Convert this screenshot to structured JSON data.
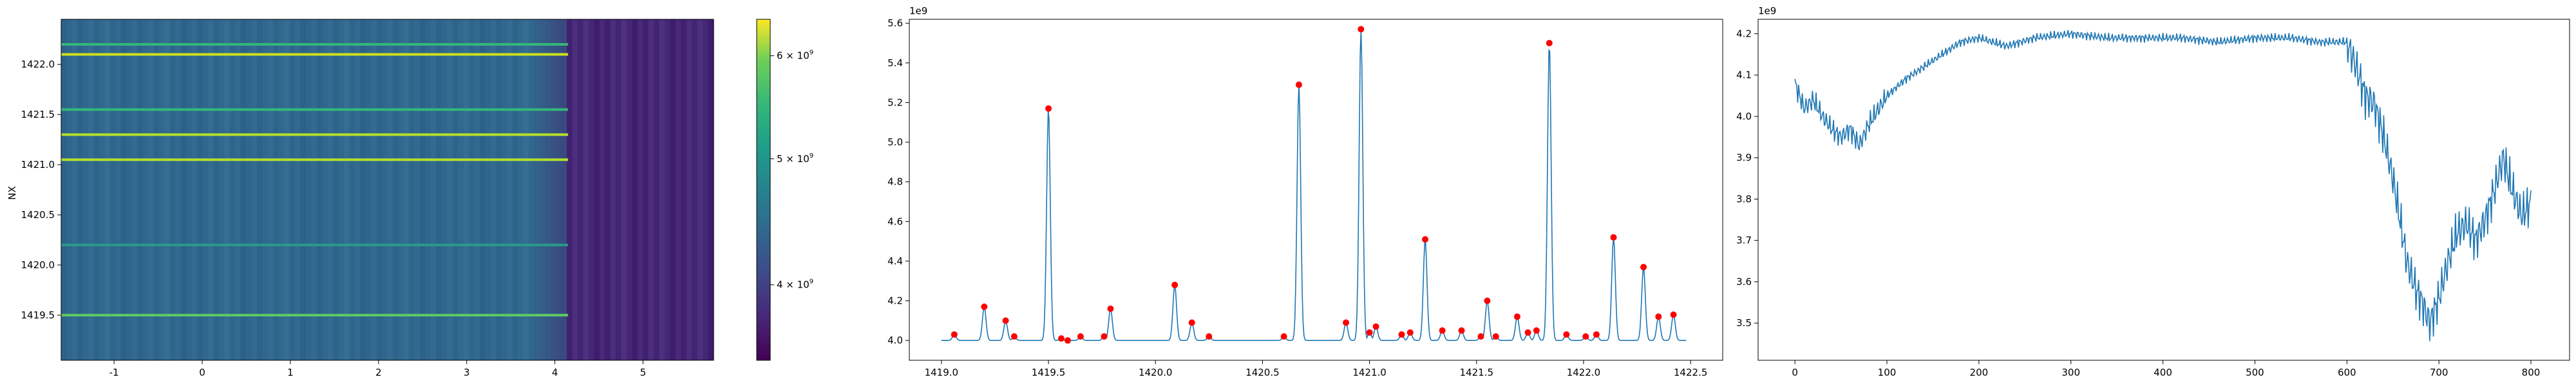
{
  "chart_data": [
    {
      "type": "heatmap",
      "ylabel": "NX",
      "xlim": [
        -1.6,
        5.8
      ],
      "ylim": [
        1419.05,
        1422.45
      ],
      "x_ticks": [
        "-1",
        "0",
        "1",
        "2",
        "3",
        "4",
        "5"
      ],
      "x_tick_values": [
        -1,
        0,
        1,
        2,
        3,
        4,
        5
      ],
      "y_ticks": [
        "1419.5",
        "1420.0",
        "1420.5",
        "1421.0",
        "1421.5",
        "1422.0"
      ],
      "y_tick_values": [
        1419.5,
        1420.0,
        1420.5,
        1421.0,
        1421.5,
        1422.0
      ],
      "colormap": "viridis",
      "colorbar": {
        "scale": "log",
        "range": [
          3500000000,
          6400000000
        ],
        "ticks": [
          {
            "value": 4000000000,
            "base": "4",
            "mult": "× 10",
            "exp": "9"
          },
          {
            "value": 5000000000,
            "base": "5",
            "mult": "× 10",
            "exp": "9"
          },
          {
            "value": 6000000000,
            "base": "6",
            "mult": "× 10",
            "exp": "9"
          }
        ]
      },
      "dark_band_x": [
        4.15,
        5.8
      ],
      "highlight_rows": [
        {
          "y": 1419.5,
          "color": "#5ec962"
        },
        {
          "y": 1421.05,
          "color": "#b5de2b"
        },
        {
          "y": 1421.3,
          "color": "#b5de2b"
        },
        {
          "y": 1421.55,
          "color": "#35b779"
        },
        {
          "y": 1422.1,
          "color": "#cde11d"
        },
        {
          "y": 1422.2,
          "color": "#35b779"
        },
        {
          "y": 1420.2,
          "color": "#2a9a8a"
        }
      ]
    },
    {
      "type": "line",
      "multiplier": "1e9",
      "xlim": [
        1418.85,
        1422.65
      ],
      "ylim": [
        3.9,
        5.62
      ],
      "x_ticks": [
        "1419.0",
        "1419.5",
        "1420.0",
        "1420.5",
        "1421.0",
        "1421.5",
        "1422.0",
        "1422.5"
      ],
      "x_tick_values": [
        1419.0,
        1419.5,
        1420.0,
        1420.5,
        1421.0,
        1421.5,
        1422.0,
        1422.5
      ],
      "y_ticks": [
        "4.0",
        "4.2",
        "4.4",
        "4.6",
        "4.8",
        "5.0",
        "5.2",
        "5.4",
        "5.6"
      ],
      "y_tick_values": [
        4.0,
        4.2,
        4.4,
        4.6,
        4.8,
        5.0,
        5.2,
        5.4,
        5.6
      ],
      "line_color": "#1f77b4",
      "marker_color": "#ff0000",
      "baseline": 4.0,
      "peaks": [
        {
          "x": 1419.06,
          "y": 4.03
        },
        {
          "x": 1419.2,
          "y": 4.17
        },
        {
          "x": 1419.3,
          "y": 4.1
        },
        {
          "x": 1419.34,
          "y": 4.02
        },
        {
          "x": 1419.5,
          "y": 5.17
        },
        {
          "x": 1419.56,
          "y": 4.01
        },
        {
          "x": 1419.59,
          "y": 4.0
        },
        {
          "x": 1419.65,
          "y": 4.02
        },
        {
          "x": 1419.76,
          "y": 4.02
        },
        {
          "x": 1419.79,
          "y": 4.16
        },
        {
          "x": 1420.09,
          "y": 4.28
        },
        {
          "x": 1420.17,
          "y": 4.09
        },
        {
          "x": 1420.25,
          "y": 4.02
        },
        {
          "x": 1420.6,
          "y": 4.02
        },
        {
          "x": 1420.67,
          "y": 5.29
        },
        {
          "x": 1420.89,
          "y": 4.09
        },
        {
          "x": 1420.96,
          "y": 5.57
        },
        {
          "x": 1421.0,
          "y": 4.04
        },
        {
          "x": 1421.03,
          "y": 4.07
        },
        {
          "x": 1421.15,
          "y": 4.03
        },
        {
          "x": 1421.19,
          "y": 4.04
        },
        {
          "x": 1421.26,
          "y": 4.51
        },
        {
          "x": 1421.34,
          "y": 4.05
        },
        {
          "x": 1421.43,
          "y": 4.05
        },
        {
          "x": 1421.52,
          "y": 4.02
        },
        {
          "x": 1421.55,
          "y": 4.2
        },
        {
          "x": 1421.59,
          "y": 4.02
        },
        {
          "x": 1421.69,
          "y": 4.12
        },
        {
          "x": 1421.74,
          "y": 4.04
        },
        {
          "x": 1421.78,
          "y": 4.05
        },
        {
          "x": 1421.84,
          "y": 5.5
        },
        {
          "x": 1421.92,
          "y": 4.03
        },
        {
          "x": 1422.01,
          "y": 4.02
        },
        {
          "x": 1422.06,
          "y": 4.03
        },
        {
          "x": 1422.14,
          "y": 4.52
        },
        {
          "x": 1422.28,
          "y": 4.37
        },
        {
          "x": 1422.35,
          "y": 4.12
        },
        {
          "x": 1422.42,
          "y": 4.13
        }
      ],
      "line_x_range": [
        1419.0,
        1422.48
      ]
    },
    {
      "type": "line",
      "multiplier": "1e9",
      "xlim": [
        -40,
        842
      ],
      "ylim": [
        3.41,
        4.235
      ],
      "x_ticks": [
        "0",
        "100",
        "200",
        "300",
        "400",
        "500",
        "600",
        "700",
        "800"
      ],
      "x_tick_values": [
        0,
        100,
        200,
        300,
        400,
        500,
        600,
        700,
        800
      ],
      "y_ticks": [
        "3.5",
        "3.6",
        "3.7",
        "3.8",
        "3.9",
        "4.0",
        "4.1",
        "4.2"
      ],
      "y_tick_values": [
        3.5,
        3.6,
        3.7,
        3.8,
        3.9,
        4.0,
        4.1,
        4.2
      ],
      "line_color": "#1f77b4",
      "anchors": [
        [
          0,
          4.08
        ],
        [
          10,
          4.02
        ],
        [
          20,
          4.04
        ],
        [
          30,
          4.0
        ],
        [
          40,
          3.97
        ],
        [
          50,
          3.95
        ],
        [
          60,
          3.97
        ],
        [
          70,
          3.93
        ],
        [
          80,
          3.98
        ],
        [
          100,
          4.05
        ],
        [
          120,
          4.09
        ],
        [
          140,
          4.12
        ],
        [
          160,
          4.15
        ],
        [
          180,
          4.18
        ],
        [
          200,
          4.19
        ],
        [
          230,
          4.17
        ],
        [
          260,
          4.19
        ],
        [
          300,
          4.2
        ],
        [
          340,
          4.19
        ],
        [
          380,
          4.19
        ],
        [
          420,
          4.19
        ],
        [
          460,
          4.18
        ],
        [
          500,
          4.19
        ],
        [
          540,
          4.19
        ],
        [
          570,
          4.18
        ],
        [
          600,
          4.18
        ],
        [
          610,
          4.12
        ],
        [
          620,
          4.05
        ],
        [
          630,
          4.03
        ],
        [
          640,
          3.95
        ],
        [
          650,
          3.85
        ],
        [
          660,
          3.72
        ],
        [
          665,
          3.65
        ],
        [
          675,
          3.58
        ],
        [
          680,
          3.56
        ],
        [
          690,
          3.5
        ],
        [
          700,
          3.56
        ],
        [
          710,
          3.65
        ],
        [
          720,
          3.72
        ],
        [
          730,
          3.74
        ],
        [
          740,
          3.7
        ],
        [
          750,
          3.75
        ],
        [
          760,
          3.82
        ],
        [
          770,
          3.9
        ],
        [
          780,
          3.82
        ],
        [
          790,
          3.76
        ],
        [
          800,
          3.79
        ]
      ],
      "points": 801
    }
  ]
}
